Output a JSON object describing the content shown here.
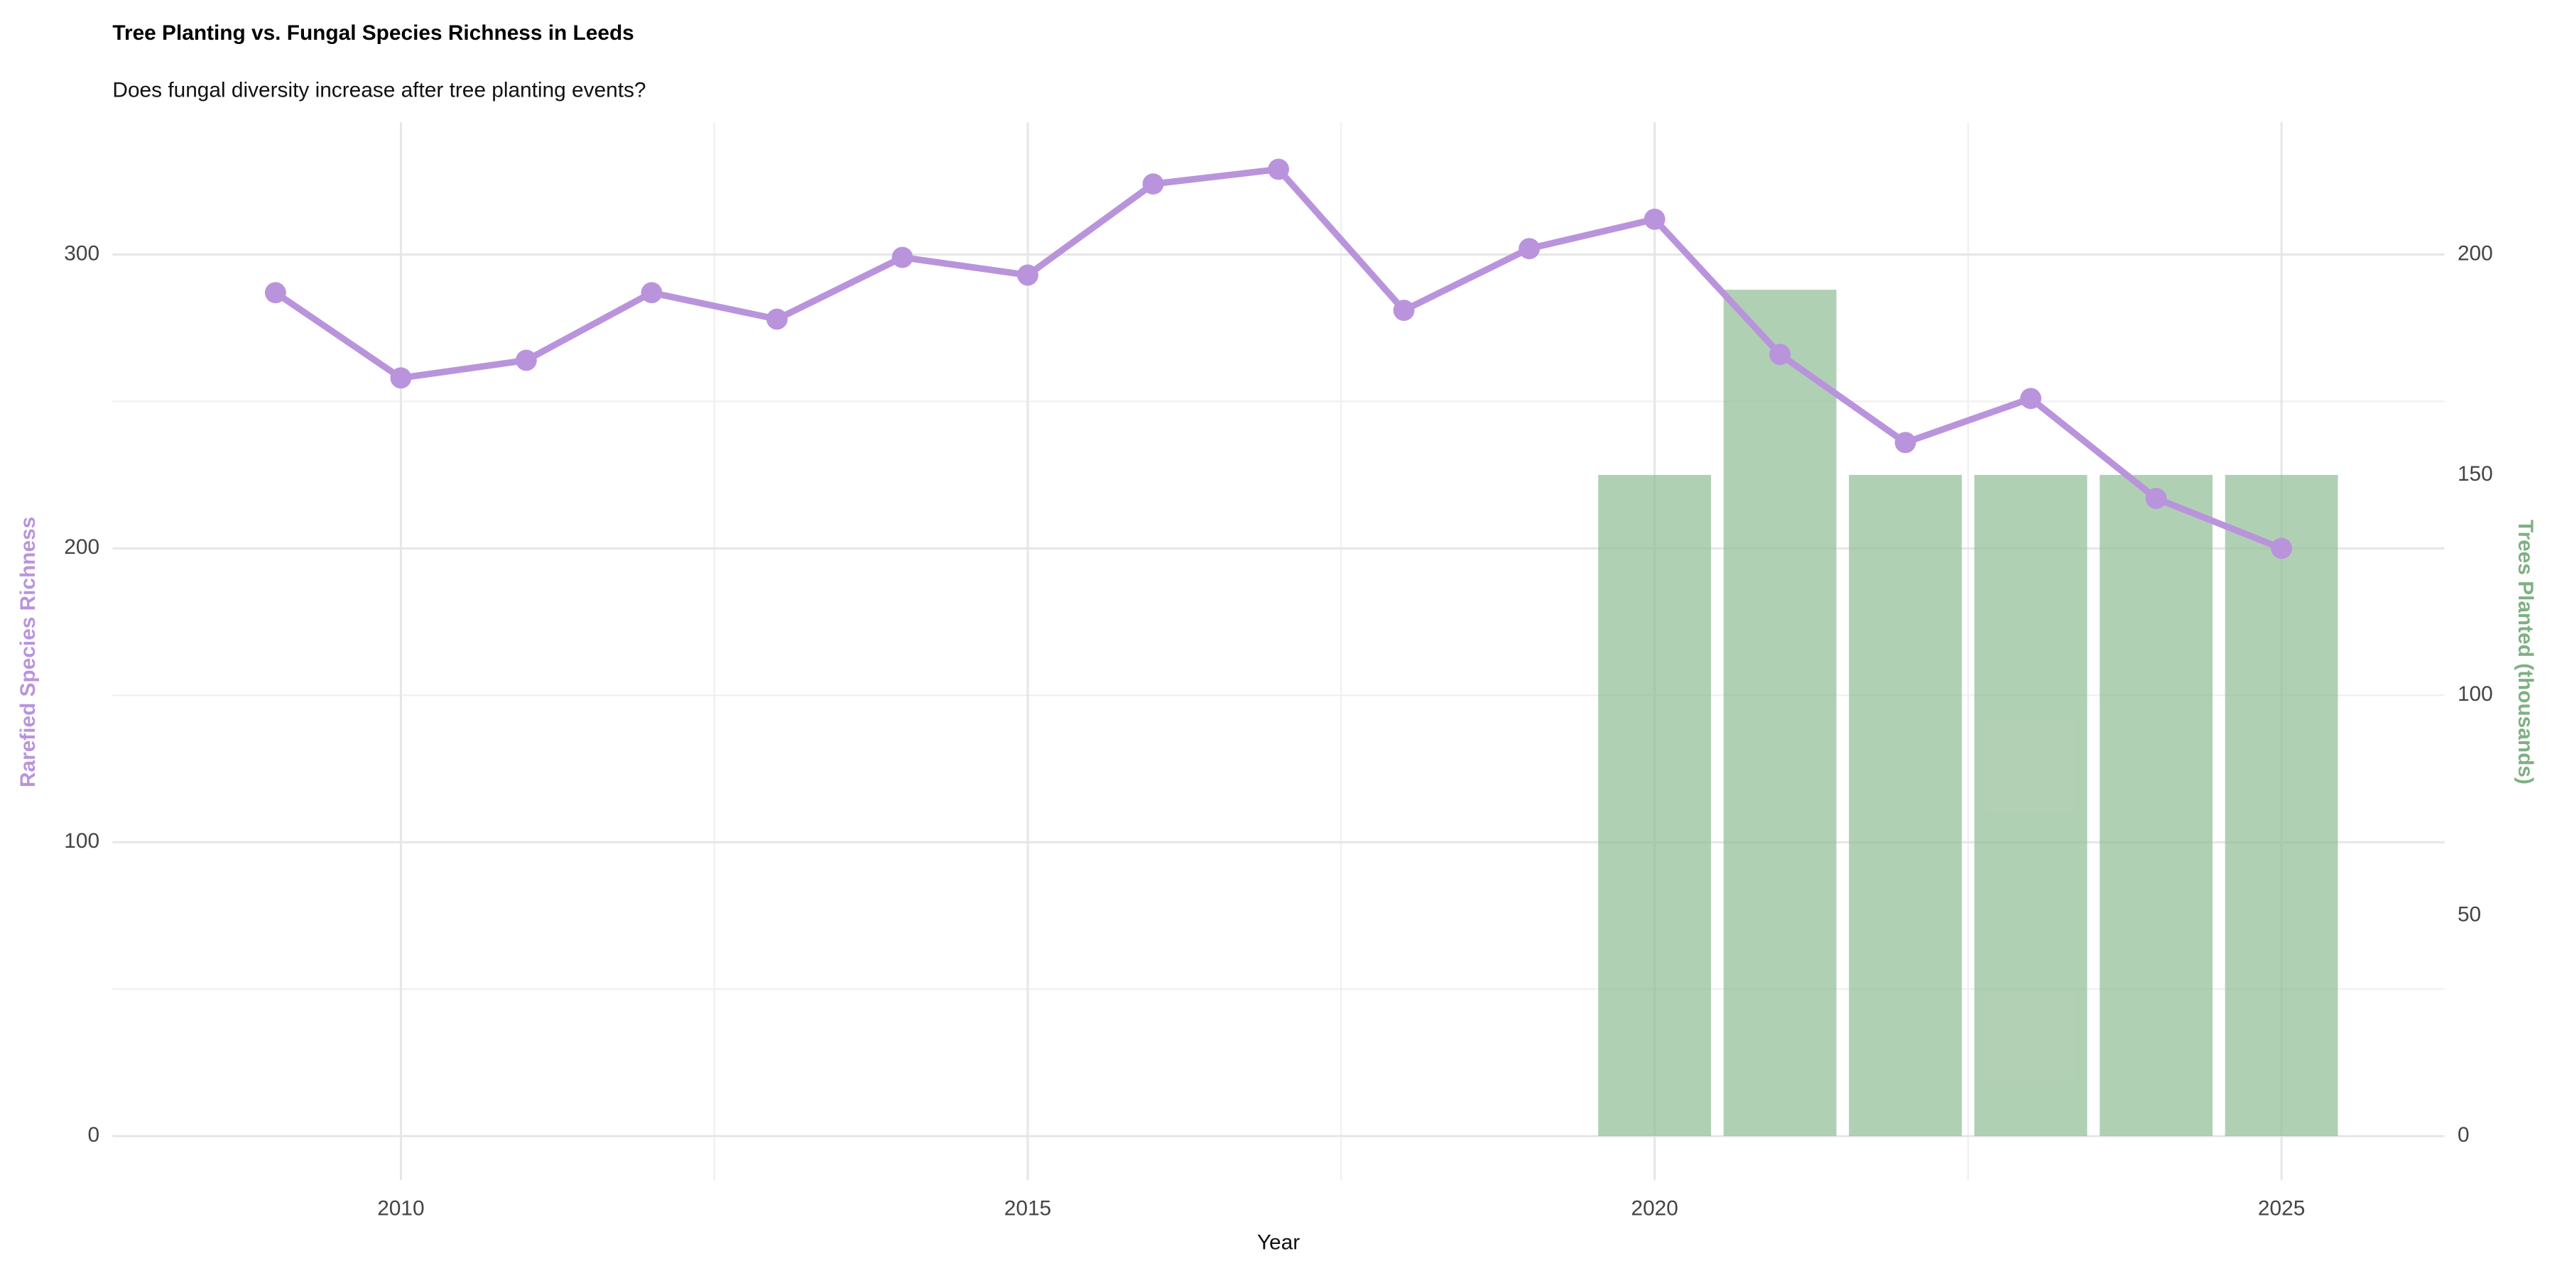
{
  "chart_data": {
    "type": "combo",
    "title": "Tree Planting vs. Fungal Species Richness in Leeds",
    "subtitle": "Does fungal diversity increase after tree planting events?",
    "x_label": "Year",
    "y_label": "Rarefied Species Richness",
    "y2_label": "Trees Planted (thousands)",
    "x": [
      2009,
      2010,
      2011,
      2012,
      2013,
      2014,
      2015,
      2016,
      2017,
      2018,
      2019,
      2020,
      2021,
      2022,
      2023,
      2024,
      2025
    ],
    "xlim": [
      2007.7,
      2026.3
    ],
    "xticks": [
      2010,
      2015,
      2020,
      2025
    ],
    "ylim": [
      -15,
      345
    ],
    "yticks": [
      0,
      100,
      200,
      300
    ],
    "y2lim": [
      -10,
      230
    ],
    "y2ticks": [
      0,
      50,
      100,
      150,
      200
    ],
    "grid": true,
    "series": [
      {
        "name": "Trees Planted (thousands)",
        "type": "bar",
        "axis": "y2",
        "color": "#8fbc94",
        "values": [
          null,
          null,
          null,
          null,
          null,
          null,
          null,
          null,
          null,
          null,
          null,
          150,
          192,
          150,
          150,
          150,
          150
        ]
      },
      {
        "name": "Rarefied Species Richness",
        "type": "line",
        "axis": "y",
        "color": "#b994dc",
        "values": [
          287,
          258,
          264,
          287,
          278,
          299,
          293,
          324,
          329,
          281,
          302,
          312,
          266,
          236,
          251,
          217,
          200
        ]
      }
    ]
  }
}
